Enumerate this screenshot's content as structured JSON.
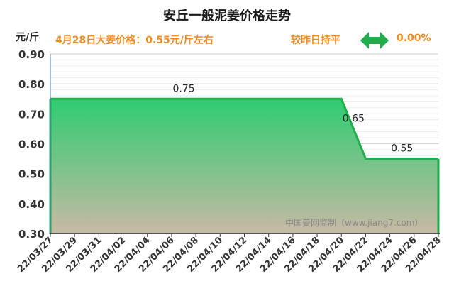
{
  "header": {
    "title": "安丘一般泥姜价格走势",
    "unit": "元/斤",
    "price_note": "4月28日大姜价格：0.55元/斤左右",
    "trend_label": "较昨日持平",
    "trend_icon": "double-arrow-icon",
    "trend_value": "0.00%"
  },
  "watermark": "中国姜网监制（www.jiang7.com）",
  "colors": {
    "accent": "#f08c21",
    "arrow": "#1fae4b",
    "fill_top": "#2ecc71",
    "fill_bottom": "#c8b9a4",
    "line": "#1fae4b"
  },
  "chart_data": {
    "type": "area",
    "x_ticks": [
      "22/03/27",
      "22/03/29",
      "22/03/31",
      "22/04/02",
      "22/04/04",
      "22/04/06",
      "22/04/08",
      "22/04/10",
      "22/04/12",
      "22/04/14",
      "22/04/16",
      "22/04/18",
      "22/04/20",
      "22/04/22",
      "22/04/24",
      "22/04/26",
      "22/04/28"
    ],
    "x": [
      "22/03/27",
      "22/04/20",
      "22/04/22",
      "22/04/28"
    ],
    "y": [
      0.75,
      0.75,
      0.55,
      0.55
    ],
    "y_ticks": [
      "0.30",
      "0.40",
      "0.50",
      "0.60",
      "0.70",
      "0.80",
      "0.90"
    ],
    "ylim": [
      0.3,
      0.9
    ],
    "data_labels": [
      {
        "x": "22/04/07",
        "text": "0.75"
      },
      {
        "x": "22/04/21",
        "text": "0.65"
      },
      {
        "x": "22/04/25",
        "text": "0.55"
      }
    ],
    "grid": true
  }
}
